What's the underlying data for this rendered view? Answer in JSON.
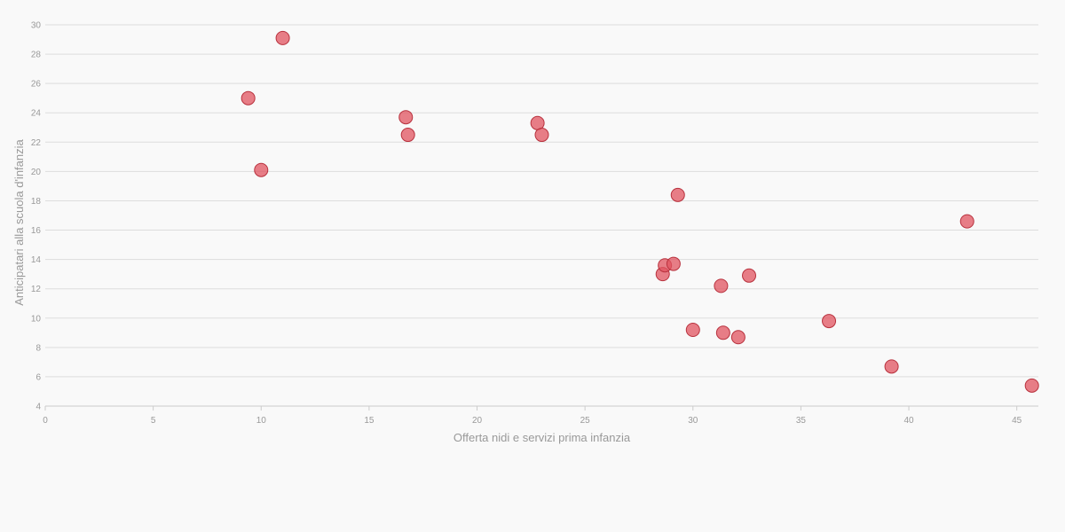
{
  "chart_data": {
    "type": "scatter",
    "title": "",
    "xlabel": "Offerta nidi e servizi prima infanzia",
    "ylabel": "Anticipatari alla scuola d'infanzia",
    "xlim": [
      0,
      46
    ],
    "ylim": [
      4,
      30
    ],
    "x_ticks": [
      0,
      5,
      10,
      15,
      20,
      25,
      30,
      35,
      40,
      45
    ],
    "y_ticks": [
      4,
      6,
      8,
      10,
      12,
      14,
      16,
      18,
      20,
      22,
      24,
      26,
      28,
      30
    ],
    "grid": true,
    "marker_color": "#e0535f",
    "marker_stroke": "#b8323e",
    "points": [
      {
        "x": 9.4,
        "y": 25.0
      },
      {
        "x": 10.0,
        "y": 20.1
      },
      {
        "x": 11.0,
        "y": 29.1
      },
      {
        "x": 16.7,
        "y": 23.7
      },
      {
        "x": 16.8,
        "y": 22.5
      },
      {
        "x": 22.8,
        "y": 23.3
      },
      {
        "x": 23.0,
        "y": 22.5
      },
      {
        "x": 28.6,
        "y": 13.0
      },
      {
        "x": 28.7,
        "y": 13.6
      },
      {
        "x": 29.1,
        "y": 13.7
      },
      {
        "x": 29.3,
        "y": 18.4
      },
      {
        "x": 30.0,
        "y": 9.2
      },
      {
        "x": 31.3,
        "y": 12.2
      },
      {
        "x": 31.4,
        "y": 9.0
      },
      {
        "x": 32.1,
        "y": 8.7
      },
      {
        "x": 32.6,
        "y": 12.9
      },
      {
        "x": 36.3,
        "y": 9.8
      },
      {
        "x": 39.2,
        "y": 6.7
      },
      {
        "x": 42.7,
        "y": 16.6
      },
      {
        "x": 45.7,
        "y": 5.4
      }
    ]
  }
}
